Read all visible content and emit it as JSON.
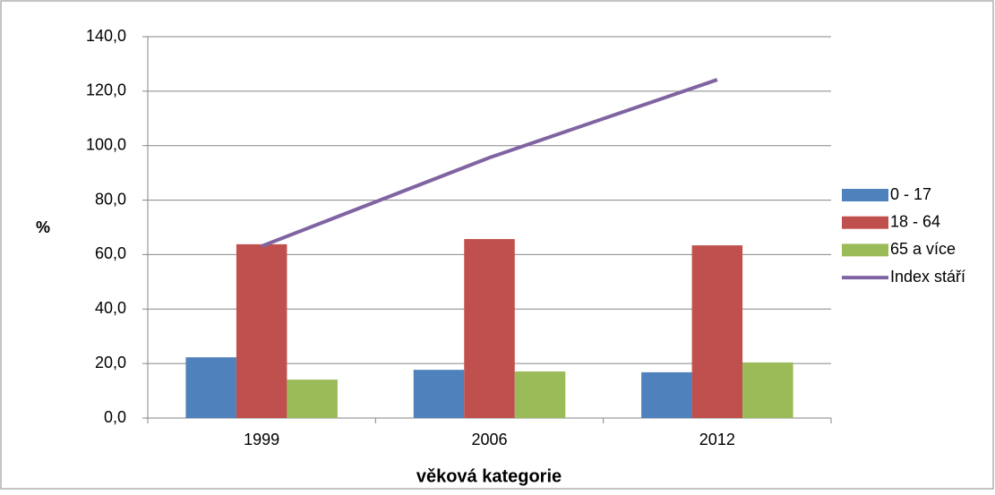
{
  "chart_data": {
    "type": "bar",
    "x_label": "věková kategorie",
    "y_label": "%",
    "categories": [
      "1999",
      "2006",
      "2012"
    ],
    "series": [
      {
        "name": "0 - 17",
        "color": "#4f81bd",
        "type": "bar",
        "values": [
          22.3,
          17.7,
          16.8
        ]
      },
      {
        "name": "18 - 64",
        "color": "#c0504d",
        "type": "bar",
        "values": [
          63.8,
          65.7,
          63.4
        ]
      },
      {
        "name": "65 a více",
        "color": "#9bbb59",
        "type": "bar",
        "values": [
          14.1,
          17.1,
          20.4
        ]
      },
      {
        "name": "Index stáří",
        "color": "#8064a2",
        "type": "line",
        "values": [
          63.1,
          95.6,
          124.2
        ]
      }
    ],
    "ylim": [
      0,
      140
    ],
    "yticks": [
      {
        "value": 0,
        "label": "0,0"
      },
      {
        "value": 20,
        "label": "20,0"
      },
      {
        "value": 40,
        "label": "40,0"
      },
      {
        "value": 60,
        "label": "60,0"
      },
      {
        "value": 80,
        "label": "80,0"
      },
      {
        "value": 100,
        "label": "100,0"
      },
      {
        "value": 120,
        "label": "120,0"
      },
      {
        "value": 140,
        "label": "140,0"
      }
    ],
    "grid": true,
    "legend": "right"
  }
}
